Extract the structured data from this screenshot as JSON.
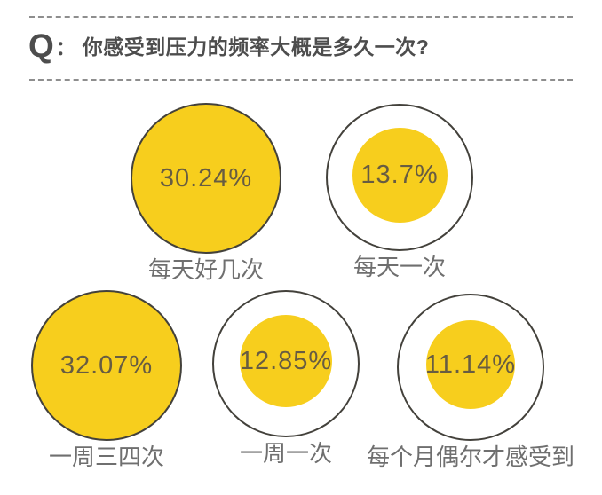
{
  "header": {
    "prefix": "Q",
    "colon": "：",
    "question": "你感受到压力的频率大概是多久一次?"
  },
  "colors": {
    "accent_yellow": "#F7CE1D",
    "circle_outline": "#43413B",
    "percent_text": "#675C42",
    "question_text": "#4D4D4D",
    "label_text": "#6F6F6F",
    "dashed_line": "#8E8E8E",
    "background": "#FFFFFF"
  },
  "chart_data": {
    "type": "bubble",
    "title": "Q：你感受到压力的频率大概是多久一次?",
    "unit": "%",
    "categories": [
      "每天好几次",
      "每天一次",
      "一周三四次",
      "一周一次",
      "每个月偶尔才感受到"
    ],
    "values": [
      30.24,
      13.7,
      32.07,
      12.85,
      11.14
    ],
    "items": [
      {
        "label": "每天好几次",
        "value": 30.24,
        "value_label": "30.24%",
        "style": "filled"
      },
      {
        "label": "每天一次",
        "value": 13.7,
        "value_label": "13.7%",
        "style": "ring"
      },
      {
        "label": "一周三四次",
        "value": 32.07,
        "value_label": "32.07%",
        "style": "filled"
      },
      {
        "label": "一周一次",
        "value": 12.85,
        "value_label": "12.85%",
        "style": "ring"
      },
      {
        "label": "每个月偶尔才感受到",
        "value": 11.14,
        "value_label": "11.14%",
        "style": "ring"
      }
    ],
    "layout_hints": {
      "rows": [
        2,
        3
      ],
      "style_note": "largest values (>30%) are solid yellow circles; smaller values are yellow dots centered inside outlined white rings, dot size proportional to value",
      "legend": "none",
      "grid": "off"
    }
  }
}
